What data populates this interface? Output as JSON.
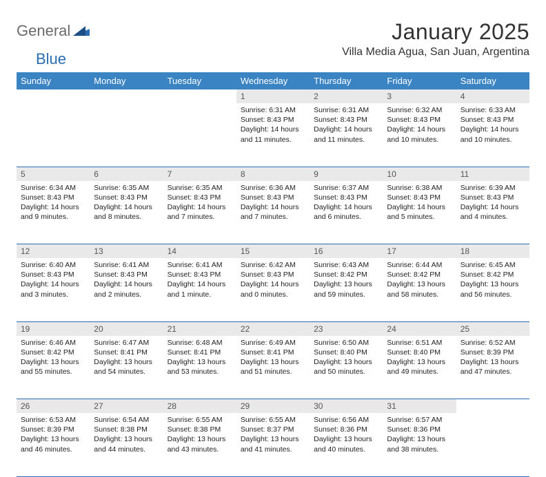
{
  "logo": {
    "general": "General",
    "blue": "Blue"
  },
  "title": "January 2025",
  "location": "Villa Media Agua, San Juan, Argentina",
  "colors": {
    "header_bg": "#3b84c4",
    "header_text": "#ffffff",
    "daynum_bg": "#e9e9e9",
    "rule": "#2a6cb4",
    "logo_gray": "#6b6b6b",
    "logo_blue": "#2a6cb4"
  },
  "weekdays": [
    "Sunday",
    "Monday",
    "Tuesday",
    "Wednesday",
    "Thursday",
    "Friday",
    "Saturday"
  ],
  "weeks": [
    [
      {
        "n": "",
        "sr": "",
        "ss": "",
        "dl": ""
      },
      {
        "n": "",
        "sr": "",
        "ss": "",
        "dl": ""
      },
      {
        "n": "",
        "sr": "",
        "ss": "",
        "dl": ""
      },
      {
        "n": "1",
        "sr": "Sunrise: 6:31 AM",
        "ss": "Sunset: 8:43 PM",
        "dl": "Daylight: 14 hours and 11 minutes."
      },
      {
        "n": "2",
        "sr": "Sunrise: 6:31 AM",
        "ss": "Sunset: 8:43 PM",
        "dl": "Daylight: 14 hours and 11 minutes."
      },
      {
        "n": "3",
        "sr": "Sunrise: 6:32 AM",
        "ss": "Sunset: 8:43 PM",
        "dl": "Daylight: 14 hours and 10 minutes."
      },
      {
        "n": "4",
        "sr": "Sunrise: 6:33 AM",
        "ss": "Sunset: 8:43 PM",
        "dl": "Daylight: 14 hours and 10 minutes."
      }
    ],
    [
      {
        "n": "5",
        "sr": "Sunrise: 6:34 AM",
        "ss": "Sunset: 8:43 PM",
        "dl": "Daylight: 14 hours and 9 minutes."
      },
      {
        "n": "6",
        "sr": "Sunrise: 6:35 AM",
        "ss": "Sunset: 8:43 PM",
        "dl": "Daylight: 14 hours and 8 minutes."
      },
      {
        "n": "7",
        "sr": "Sunrise: 6:35 AM",
        "ss": "Sunset: 8:43 PM",
        "dl": "Daylight: 14 hours and 7 minutes."
      },
      {
        "n": "8",
        "sr": "Sunrise: 6:36 AM",
        "ss": "Sunset: 8:43 PM",
        "dl": "Daylight: 14 hours and 7 minutes."
      },
      {
        "n": "9",
        "sr": "Sunrise: 6:37 AM",
        "ss": "Sunset: 8:43 PM",
        "dl": "Daylight: 14 hours and 6 minutes."
      },
      {
        "n": "10",
        "sr": "Sunrise: 6:38 AM",
        "ss": "Sunset: 8:43 PM",
        "dl": "Daylight: 14 hours and 5 minutes."
      },
      {
        "n": "11",
        "sr": "Sunrise: 6:39 AM",
        "ss": "Sunset: 8:43 PM",
        "dl": "Daylight: 14 hours and 4 minutes."
      }
    ],
    [
      {
        "n": "12",
        "sr": "Sunrise: 6:40 AM",
        "ss": "Sunset: 8:43 PM",
        "dl": "Daylight: 14 hours and 3 minutes."
      },
      {
        "n": "13",
        "sr": "Sunrise: 6:41 AM",
        "ss": "Sunset: 8:43 PM",
        "dl": "Daylight: 14 hours and 2 minutes."
      },
      {
        "n": "14",
        "sr": "Sunrise: 6:41 AM",
        "ss": "Sunset: 8:43 PM",
        "dl": "Daylight: 14 hours and 1 minute."
      },
      {
        "n": "15",
        "sr": "Sunrise: 6:42 AM",
        "ss": "Sunset: 8:43 PM",
        "dl": "Daylight: 14 hours and 0 minutes."
      },
      {
        "n": "16",
        "sr": "Sunrise: 6:43 AM",
        "ss": "Sunset: 8:42 PM",
        "dl": "Daylight: 13 hours and 59 minutes."
      },
      {
        "n": "17",
        "sr": "Sunrise: 6:44 AM",
        "ss": "Sunset: 8:42 PM",
        "dl": "Daylight: 13 hours and 58 minutes."
      },
      {
        "n": "18",
        "sr": "Sunrise: 6:45 AM",
        "ss": "Sunset: 8:42 PM",
        "dl": "Daylight: 13 hours and 56 minutes."
      }
    ],
    [
      {
        "n": "19",
        "sr": "Sunrise: 6:46 AM",
        "ss": "Sunset: 8:42 PM",
        "dl": "Daylight: 13 hours and 55 minutes."
      },
      {
        "n": "20",
        "sr": "Sunrise: 6:47 AM",
        "ss": "Sunset: 8:41 PM",
        "dl": "Daylight: 13 hours and 54 minutes."
      },
      {
        "n": "21",
        "sr": "Sunrise: 6:48 AM",
        "ss": "Sunset: 8:41 PM",
        "dl": "Daylight: 13 hours and 53 minutes."
      },
      {
        "n": "22",
        "sr": "Sunrise: 6:49 AM",
        "ss": "Sunset: 8:41 PM",
        "dl": "Daylight: 13 hours and 51 minutes."
      },
      {
        "n": "23",
        "sr": "Sunrise: 6:50 AM",
        "ss": "Sunset: 8:40 PM",
        "dl": "Daylight: 13 hours and 50 minutes."
      },
      {
        "n": "24",
        "sr": "Sunrise: 6:51 AM",
        "ss": "Sunset: 8:40 PM",
        "dl": "Daylight: 13 hours and 49 minutes."
      },
      {
        "n": "25",
        "sr": "Sunrise: 6:52 AM",
        "ss": "Sunset: 8:39 PM",
        "dl": "Daylight: 13 hours and 47 minutes."
      }
    ],
    [
      {
        "n": "26",
        "sr": "Sunrise: 6:53 AM",
        "ss": "Sunset: 8:39 PM",
        "dl": "Daylight: 13 hours and 46 minutes."
      },
      {
        "n": "27",
        "sr": "Sunrise: 6:54 AM",
        "ss": "Sunset: 8:38 PM",
        "dl": "Daylight: 13 hours and 44 minutes."
      },
      {
        "n": "28",
        "sr": "Sunrise: 6:55 AM",
        "ss": "Sunset: 8:38 PM",
        "dl": "Daylight: 13 hours and 43 minutes."
      },
      {
        "n": "29",
        "sr": "Sunrise: 6:55 AM",
        "ss": "Sunset: 8:37 PM",
        "dl": "Daylight: 13 hours and 41 minutes."
      },
      {
        "n": "30",
        "sr": "Sunrise: 6:56 AM",
        "ss": "Sunset: 8:36 PM",
        "dl": "Daylight: 13 hours and 40 minutes."
      },
      {
        "n": "31",
        "sr": "Sunrise: 6:57 AM",
        "ss": "Sunset: 8:36 PM",
        "dl": "Daylight: 13 hours and 38 minutes."
      },
      {
        "n": "",
        "sr": "",
        "ss": "",
        "dl": ""
      }
    ]
  ]
}
